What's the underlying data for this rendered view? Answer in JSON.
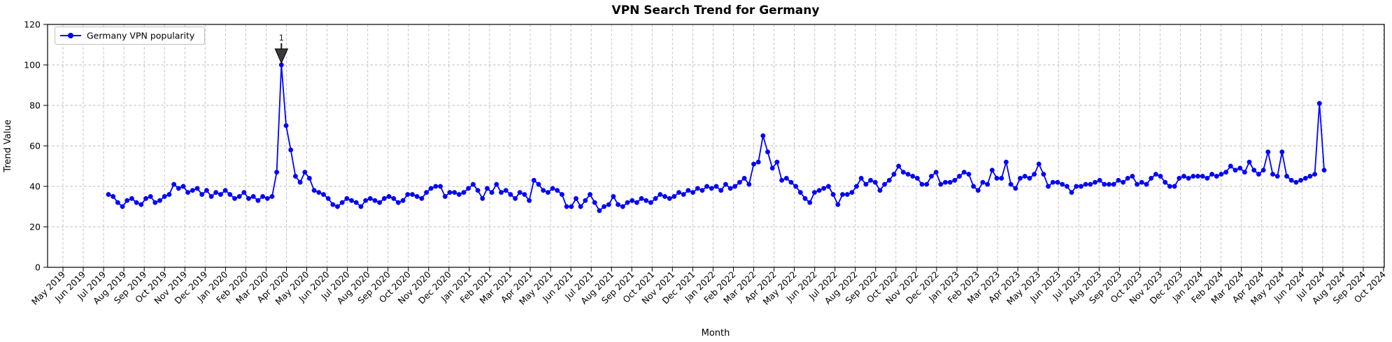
{
  "chart_data": {
    "type": "line",
    "title": "VPN Search Trend for Germany",
    "xlabel": "Month",
    "ylabel": "Trend Value",
    "series_name": "Germany VPN popularity",
    "line_color": "#0000ff",
    "arrow_color": "#3a3a3a",
    "grid": true,
    "legend_position": "upper left",
    "ylim": [
      0,
      120
    ],
    "yticks": [
      0,
      20,
      40,
      60,
      80,
      100,
      120
    ],
    "x_tick_labels": [
      "May 2019",
      "Jun 2019",
      "Jul 2019",
      "Aug 2019",
      "Sep 2019",
      "Oct 2019",
      "Nov 2019",
      "Dec 2019",
      "Jan 2020",
      "Feb 2020",
      "Mar 2020",
      "Apr 2020",
      "May 2020",
      "Jun 2020",
      "Jul 2020",
      "Aug 2020",
      "Sep 2020",
      "Oct 2020",
      "Nov 2020",
      "Dec 2020",
      "Jan 2021",
      "Feb 2021",
      "Mar 2021",
      "Apr 2021",
      "May 2021",
      "Jun 2021",
      "Jul 2021",
      "Aug 2021",
      "Sep 2021",
      "Oct 2021",
      "Nov 2021",
      "Dec 2021",
      "Jan 2022",
      "Feb 2022",
      "Mar 2022",
      "Apr 2022",
      "May 2022",
      "Jun 2022",
      "Jul 2022",
      "Aug 2022",
      "Sep 2022",
      "Oct 2022",
      "Nov 2022",
      "Dec 2022",
      "Jan 2023",
      "Feb 2023",
      "Mar 2023",
      "Apr 2023",
      "May 2023",
      "Jun 2023",
      "Jul 2023",
      "Aug 2023",
      "Sep 2023",
      "Oct 2023",
      "Nov 2023",
      "Dec 2023",
      "Jan 2024",
      "Feb 2024",
      "Mar 2024",
      "Apr 2024",
      "May 2024",
      "Jun 2024",
      "Jul 2024",
      "Aug 2024",
      "Sep 2024",
      "Oct 2024"
    ],
    "frequency": "weekly",
    "data_start": "Jul 2019",
    "data_end": "Jul 2024",
    "n_points": 261,
    "values": [
      36,
      35,
      32,
      30,
      33,
      34,
      32,
      31,
      34,
      35,
      32,
      33,
      35,
      36,
      41,
      39,
      40,
      37,
      38,
      39,
      36,
      38,
      35,
      37,
      36,
      38,
      36,
      34,
      35,
      37,
      34,
      35,
      33,
      35,
      34,
      35,
      47,
      100,
      70,
      58,
      45,
      42,
      47,
      44,
      38,
      37,
      36,
      34,
      31,
      30,
      32,
      34,
      33,
      32,
      30,
      33,
      34,
      33,
      32,
      34,
      35,
      34,
      32,
      33,
      36,
      36,
      35,
      34,
      37,
      39,
      40,
      40,
      35,
      37,
      37,
      36,
      37,
      39,
      41,
      38,
      34,
      39,
      37,
      41,
      37,
      38,
      36,
      34,
      37,
      36,
      33,
      43,
      41,
      38,
      37,
      39,
      38,
      36,
      30,
      30,
      34,
      30,
      33,
      36,
      32,
      28,
      30,
      31,
      35,
      31,
      30,
      32,
      33,
      32,
      34,
      33,
      32,
      34,
      36,
      35,
      34,
      35,
      37,
      36,
      38,
      37,
      39,
      38,
      40,
      39,
      40,
      38,
      41,
      39,
      40,
      42,
      44,
      41,
      51,
      52,
      65,
      57,
      49,
      52,
      43,
      44,
      42,
      40,
      37,
      34,
      32,
      37,
      38,
      39,
      40,
      36,
      31,
      36,
      36,
      37,
      40,
      44,
      41,
      43,
      42,
      38,
      41,
      43,
      46,
      50,
      47,
      46,
      45,
      44,
      41,
      41,
      45,
      47,
      41,
      42,
      42,
      43,
      45,
      47,
      46,
      40,
      38,
      42,
      41,
      48,
      44,
      44,
      52,
      41,
      39,
      44,
      45,
      44,
      46,
      51,
      46,
      40,
      42,
      42,
      41,
      40,
      37,
      40,
      40,
      41,
      41,
      42,
      43,
      41,
      41,
      41,
      43,
      42,
      44,
      45,
      41,
      42,
      41,
      44,
      46,
      45,
      42,
      40,
      40,
      44,
      45,
      44,
      45,
      45,
      45,
      44,
      46,
      45,
      46,
      47,
      50,
      48,
      49,
      47,
      52,
      48,
      46,
      48,
      57,
      46,
      45,
      57,
      45,
      43,
      42,
      43,
      44,
      45,
      46,
      81,
      48
    ],
    "annotation": {
      "text": "1",
      "point_index": 37,
      "peak_value": 100
    }
  }
}
